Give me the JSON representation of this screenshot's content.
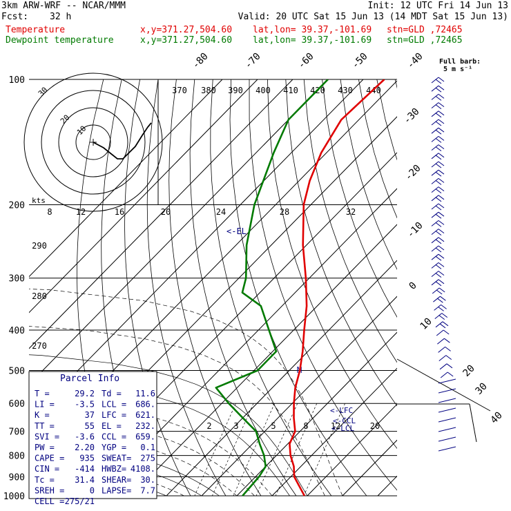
{
  "header": {
    "title": "3km ARW-WRF -- NCAR/MMM",
    "init": "Init: 12 UTC Fri 14 Jun 13",
    "fcst_label": "Fcst:",
    "fcst_value": "32 h",
    "valid": "Valid: 20 UTC Sat 15 Jun 13 (14 MDT Sat 15 Jun 13)",
    "temp_label": "Temperature",
    "dew_label": "Dewpoint temperature",
    "xy": "x,y=371.27,504.60",
    "latlon": "lat,lon= 39.37,-101.69",
    "stn": "stn=GLD ,72465"
  },
  "legend_barb": {
    "line1": "Full barb:",
    "line2": "5 m s⁻¹"
  },
  "chart_data": {
    "type": "line",
    "pressure_levels": [
      "100",
      "200",
      "300",
      "400",
      "500",
      "600",
      "700",
      "800",
      "900",
      "1000"
    ],
    "temperature_scale_upper": [
      "-80",
      "-70",
      "-60",
      "-50",
      "-40"
    ],
    "temperature_scale_right": [
      "-30",
      "-20",
      "-10",
      "0",
      "10",
      "20",
      "30",
      "40"
    ],
    "theta_labels": [
      "370",
      "380",
      "390",
      "400",
      "410",
      "420",
      "430",
      "440"
    ],
    "theta_labels_left": [
      "290",
      "280",
      "270"
    ],
    "mixing_ratio_labels": [
      "2",
      "3",
      "5",
      "8",
      "12",
      "20"
    ],
    "wind_speed_ring_labels": [
      "8",
      "12",
      "16",
      "20",
      "24",
      "28",
      "32"
    ],
    "hodograph_ring_labels": [
      "30",
      "20",
      "10"
    ],
    "hodograph_unit": "kts",
    "el_label": "<-EL",
    "lfc_label": "<-LFC",
    "ccl_label": "<-CCL",
    "lcl_label": "<-LCL",
    "series": [
      {
        "name": "Temperature",
        "color": "#e00000",
        "points": [
          [
            1000,
            29.2
          ],
          [
            900,
            21.0
          ],
          [
            850,
            18.0
          ],
          [
            800,
            14.0
          ],
          [
            750,
            10.5
          ],
          [
            700,
            8.6
          ],
          [
            650,
            4.5
          ],
          [
            600,
            0.5
          ],
          [
            550,
            -3.5
          ],
          [
            500,
            -7.0
          ],
          [
            450,
            -11.5
          ],
          [
            400,
            -17.0
          ],
          [
            350,
            -23.0
          ],
          [
            300,
            -31.0
          ],
          [
            250,
            -41.0
          ],
          [
            200,
            -52.0
          ],
          [
            175,
            -57.0
          ],
          [
            150,
            -61.5
          ],
          [
            125,
            -65.0
          ],
          [
            100,
            -64.0
          ]
        ]
      },
      {
        "name": "Dewpoint temperature",
        "color": "#007a00",
        "points": [
          [
            1000,
            11.6
          ],
          [
            900,
            11.0
          ],
          [
            850,
            10.0
          ],
          [
            800,
            6.5
          ],
          [
            750,
            2.0
          ],
          [
            700,
            -2.5
          ],
          [
            650,
            -10.0
          ],
          [
            600,
            -18.0
          ],
          [
            550,
            -26.0
          ],
          [
            500,
            -19.0
          ],
          [
            450,
            -19.0
          ],
          [
            400,
            -27.0
          ],
          [
            350,
            -36.0
          ],
          [
            325,
            -45.0
          ],
          [
            300,
            -48.0
          ],
          [
            250,
            -57.0
          ],
          [
            200,
            -66.0
          ],
          [
            150,
            -75.0
          ],
          [
            125,
            -80.0
          ],
          [
            100,
            -80.0
          ]
        ]
      }
    ],
    "parcel_info": {
      "title": "Parcel Info",
      "rows": [
        [
          "T  =",
          "29.2",
          "Td =",
          "11.6"
        ],
        [
          "LI =",
          "-3.5",
          "LCL =",
          "686."
        ],
        [
          "K  =",
          "37",
          "LFC =",
          "621."
        ],
        [
          "TT =",
          "55",
          "EL  =",
          "232."
        ],
        [
          "SVI =",
          "-3.6",
          "CCL =",
          "659."
        ],
        [
          "PW =",
          "2.20",
          "YGP =",
          "0.1"
        ],
        [
          "CAPE =",
          "935",
          "SWEAT=",
          "275"
        ],
        [
          "CIN =",
          "-414",
          "HWBZ=",
          "4108."
        ],
        [
          "Tc =",
          "31.4",
          "SHEAR=",
          "30."
        ],
        [
          "SREH =",
          "0",
          "LAPSE=",
          "7.7"
        ],
        [
          "CELL =",
          "275/21",
          "",
          ""
        ]
      ]
    }
  }
}
